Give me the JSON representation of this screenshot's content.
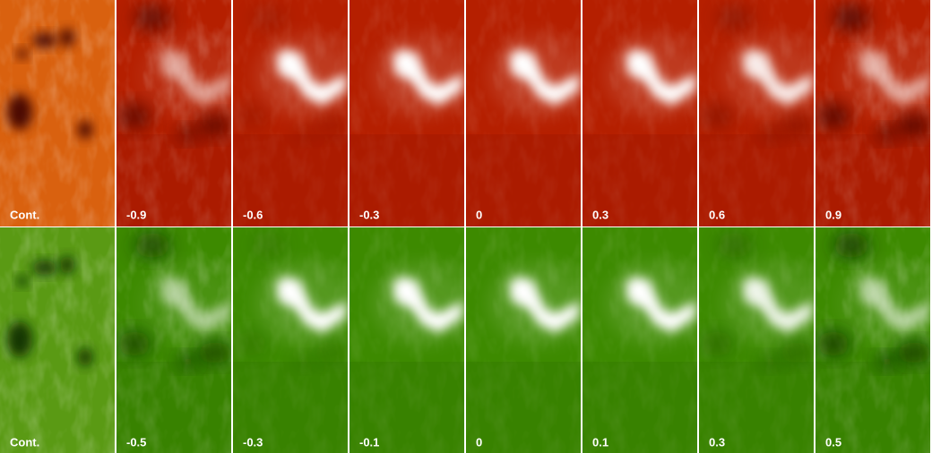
{
  "rows": [
    {
      "labels": [
        "Cont.",
        "-0.9",
        "-0.6",
        "-0.3",
        "0",
        "0.3",
        "0.6",
        "0.9"
      ]
    },
    {
      "labels": [
        "Cont.",
        "-0.5",
        "-0.3",
        "-0.1",
        "0",
        "0.1",
        "0.3",
        "0.5"
      ]
    }
  ]
}
